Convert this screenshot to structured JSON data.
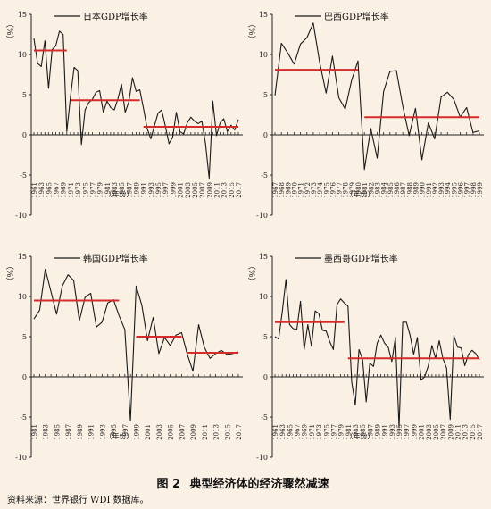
{
  "figure": {
    "caption_number": "图 2",
    "caption_title": "典型经济体的经济骤然减速",
    "source": "资料来源：世界银行 WDI 数据库。"
  },
  "chart_data": [
    {
      "type": "line",
      "title": "日本GDP增长率",
      "ylabel": "%",
      "xlabel": "（年份）",
      "ylim": [
        -10,
        15
      ],
      "yticks": [
        -10,
        -5,
        0,
        5,
        10,
        15
      ],
      "x": [
        1961,
        1962,
        1963,
        1964,
        1965,
        1966,
        1967,
        1968,
        1969,
        1970,
        1971,
        1972,
        1973,
        1974,
        1975,
        1976,
        1977,
        1978,
        1979,
        1980,
        1981,
        1982,
        1983,
        1984,
        1985,
        1986,
        1987,
        1988,
        1989,
        1990,
        1991,
        1992,
        1993,
        1994,
        1995,
        1996,
        1997,
        1998,
        1999,
        2000,
        2001,
        2002,
        2003,
        2004,
        2005,
        2006,
        2007,
        2008,
        2009,
        2010,
        2011,
        2012,
        2013,
        2014,
        2015,
        2016,
        2017
      ],
      "xtick_labels": [
        "1961",
        "1963",
        "1965",
        "1967",
        "1969",
        "1971",
        "1973",
        "1975",
        "1977",
        "1979",
        "1981",
        "1983",
        "1985",
        "1987",
        "1989",
        "1991",
        "1993",
        "1995",
        "1997",
        "1999",
        "2001",
        "2003",
        "2005",
        "2007",
        "2009",
        "2011",
        "2013",
        "2015",
        "2017"
      ],
      "series": [
        {
          "color": "#1a1a1a",
          "values": [
            12.0,
            8.9,
            8.5,
            11.7,
            5.8,
            10.6,
            11.1,
            12.9,
            12.5,
            0.4,
            4.7,
            8.4,
            8.0,
            -1.2,
            3.1,
            4.0,
            4.4,
            5.3,
            5.5,
            2.8,
            4.2,
            3.4,
            3.1,
            4.5,
            6.3,
            2.8,
            4.1,
            7.1,
            5.4,
            5.6,
            3.3,
            0.8,
            -0.5,
            1.1,
            2.7,
            3.1,
            1.1,
            -1.1,
            -0.3,
            2.8,
            0.4,
            0.1,
            1.5,
            2.2,
            1.7,
            1.4,
            1.7,
            -1.1,
            -5.4,
            4.2,
            -0.1,
            1.5,
            2.0,
            0.4,
            1.2,
            0.6,
            1.9
          ]
        }
      ],
      "mean_lines": [
        {
          "x_start": 1961,
          "x_end": 1970,
          "value": 10.5,
          "color": "#d42b2b"
        },
        {
          "x_start": 1971,
          "x_end": 1990,
          "value": 4.3,
          "color": "#d42b2b"
        },
        {
          "x_start": 1991,
          "x_end": 2017,
          "value": 1.0,
          "color": "#d42b2b"
        }
      ]
    },
    {
      "type": "line",
      "title": "巴西GDP增长率",
      "ylabel": "%",
      "xlabel": "（年份）",
      "ylim": [
        -10,
        15
      ],
      "yticks": [
        -10,
        -5,
        0,
        5,
        10,
        15
      ],
      "x": [
        1967,
        1968,
        1969,
        1970,
        1971,
        1972,
        1973,
        1974,
        1975,
        1976,
        1977,
        1978,
        1979,
        1980,
        1981,
        1982,
        1983,
        1984,
        1985,
        1986,
        1987,
        1988,
        1989,
        1990,
        1991,
        1992,
        1993,
        1994,
        1995,
        1996,
        1997,
        1998,
        1999
      ],
      "xtick_labels": [
        "1967",
        "1968",
        "1969",
        "1970",
        "1971",
        "1972",
        "1973",
        "1974",
        "1975",
        "1976",
        "1977",
        "1978",
        "1979",
        "1980",
        "1981",
        "1982",
        "1983",
        "1984",
        "1985",
        "1986",
        "1987",
        "1988",
        "1989",
        "1990",
        "1991",
        "1992",
        "1993",
        "1994",
        "1995",
        "1996",
        "1997",
        "1998",
        "1999"
      ],
      "series": [
        {
          "color": "#1a1a1a",
          "values": [
            4.9,
            11.4,
            10.2,
            8.8,
            11.3,
            12.1,
            13.9,
            9.0,
            5.2,
            9.8,
            4.6,
            3.2,
            6.8,
            9.2,
            -4.3,
            0.8,
            -2.9,
            5.4,
            7.9,
            8.0,
            3.6,
            -0.1,
            3.3,
            -3.1,
            1.5,
            -0.5,
            4.7,
            5.3,
            4.4,
            2.2,
            3.4,
            0.3,
            0.5
          ]
        }
      ],
      "mean_lines": [
        {
          "x_start": 1967,
          "x_end": 1980,
          "value": 8.1,
          "color": "#d42b2b"
        },
        {
          "x_start": 1981,
          "x_end": 1999,
          "value": 2.2,
          "color": "#d42b2b"
        }
      ]
    },
    {
      "type": "line",
      "title": "韩国GDP增长率",
      "ylabel": "%",
      "xlabel": "（年份）",
      "ylim": [
        -10,
        15
      ],
      "yticks": [
        -10,
        -5,
        0,
        5,
        10,
        15
      ],
      "x": [
        1981,
        1982,
        1983,
        1984,
        1985,
        1986,
        1987,
        1988,
        1989,
        1990,
        1991,
        1992,
        1993,
        1994,
        1995,
        1996,
        1997,
        1998,
        1999,
        2000,
        2001,
        2002,
        2003,
        2004,
        2005,
        2006,
        2007,
        2008,
        2009,
        2010,
        2011,
        2012,
        2013,
        2014,
        2015,
        2016,
        2017
      ],
      "xtick_labels": [
        "1981",
        "1983",
        "1985",
        "1987",
        "1989",
        "1991",
        "1993",
        "1995",
        "1997",
        "1999",
        "2001",
        "2003",
        "2005",
        "2007",
        "2009",
        "2011",
        "2013",
        "2015",
        "2017"
      ],
      "series": [
        {
          "color": "#1a1a1a",
          "values": [
            7.2,
            8.3,
            13.4,
            10.6,
            7.8,
            11.3,
            12.7,
            12.0,
            7.0,
            9.9,
            10.4,
            6.2,
            6.8,
            9.2,
            9.6,
            7.6,
            5.9,
            -5.5,
            11.3,
            8.9,
            4.5,
            7.4,
            2.9,
            4.9,
            3.9,
            5.2,
            5.5,
            2.8,
            0.7,
            6.5,
            3.7,
            2.3,
            2.9,
            3.3,
            2.8,
            2.9,
            3.1
          ]
        }
      ],
      "mean_lines": [
        {
          "x_start": 1981,
          "x_end": 1996,
          "value": 9.5,
          "color": "#d42b2b"
        },
        {
          "x_start": 1999,
          "x_end": 2007,
          "value": 5.0,
          "color": "#d42b2b"
        },
        {
          "x_start": 2008,
          "x_end": 2017,
          "value": 3.0,
          "color": "#d42b2b"
        }
      ]
    },
    {
      "type": "line",
      "title": "墨西哥GDP增长率",
      "ylabel": "%",
      "xlabel": "（年份）",
      "ylim": [
        -10,
        15
      ],
      "yticks": [
        -10,
        -5,
        0,
        5,
        10,
        15
      ],
      "x": [
        1961,
        1962,
        1963,
        1964,
        1965,
        1966,
        1967,
        1968,
        1969,
        1970,
        1971,
        1972,
        1973,
        1974,
        1975,
        1976,
        1977,
        1978,
        1979,
        1980,
        1981,
        1982,
        1983,
        1984,
        1985,
        1986,
        1987,
        1988,
        1989,
        1990,
        1991,
        1992,
        1993,
        1994,
        1995,
        1996,
        1997,
        1998,
        1999,
        2000,
        2001,
        2002,
        2003,
        2004,
        2005,
        2006,
        2007,
        2008,
        2009,
        2010,
        2011,
        2012,
        2013,
        2014,
        2015,
        2016,
        2017
      ],
      "xtick_labels": [
        "1961",
        "1963",
        "1965",
        "1967",
        "1969",
        "1971",
        "1973",
        "1975",
        "1977",
        "1979",
        "1981",
        "1983",
        "1985",
        "1987",
        "1989",
        "1991",
        "1993",
        "1995",
        "1997",
        "1999",
        "2001",
        "2003",
        "2005",
        "2007",
        "2009",
        "2011",
        "2013",
        "2015",
        "2017"
      ],
      "series": [
        {
          "color": "#1a1a1a",
          "values": [
            5.0,
            4.7,
            8.1,
            12.1,
            6.5,
            6.0,
            5.9,
            9.4,
            3.4,
            6.5,
            3.8,
            8.2,
            7.9,
            5.8,
            5.7,
            4.4,
            3.4,
            9.0,
            9.7,
            9.2,
            8.8,
            -0.6,
            -3.5,
            3.4,
            2.2,
            -3.1,
            1.7,
            1.3,
            4.2,
            5.2,
            4.2,
            3.7,
            1.9,
            4.9,
            -6.3,
            6.8,
            6.8,
            5.2,
            2.8,
            4.9,
            -0.4,
            0.0,
            1.4,
            3.9,
            2.3,
            4.5,
            2.3,
            1.1,
            -5.3,
            5.1,
            3.7,
            3.6,
            1.4,
            2.8,
            3.3,
            2.9,
            2.1
          ]
        }
      ],
      "mean_lines": [
        {
          "x_start": 1961,
          "x_end": 1980,
          "value": 6.8,
          "color": "#d42b2b"
        },
        {
          "x_start": 1981,
          "x_end": 2017,
          "value": 2.3,
          "color": "#d42b2b"
        }
      ]
    }
  ]
}
